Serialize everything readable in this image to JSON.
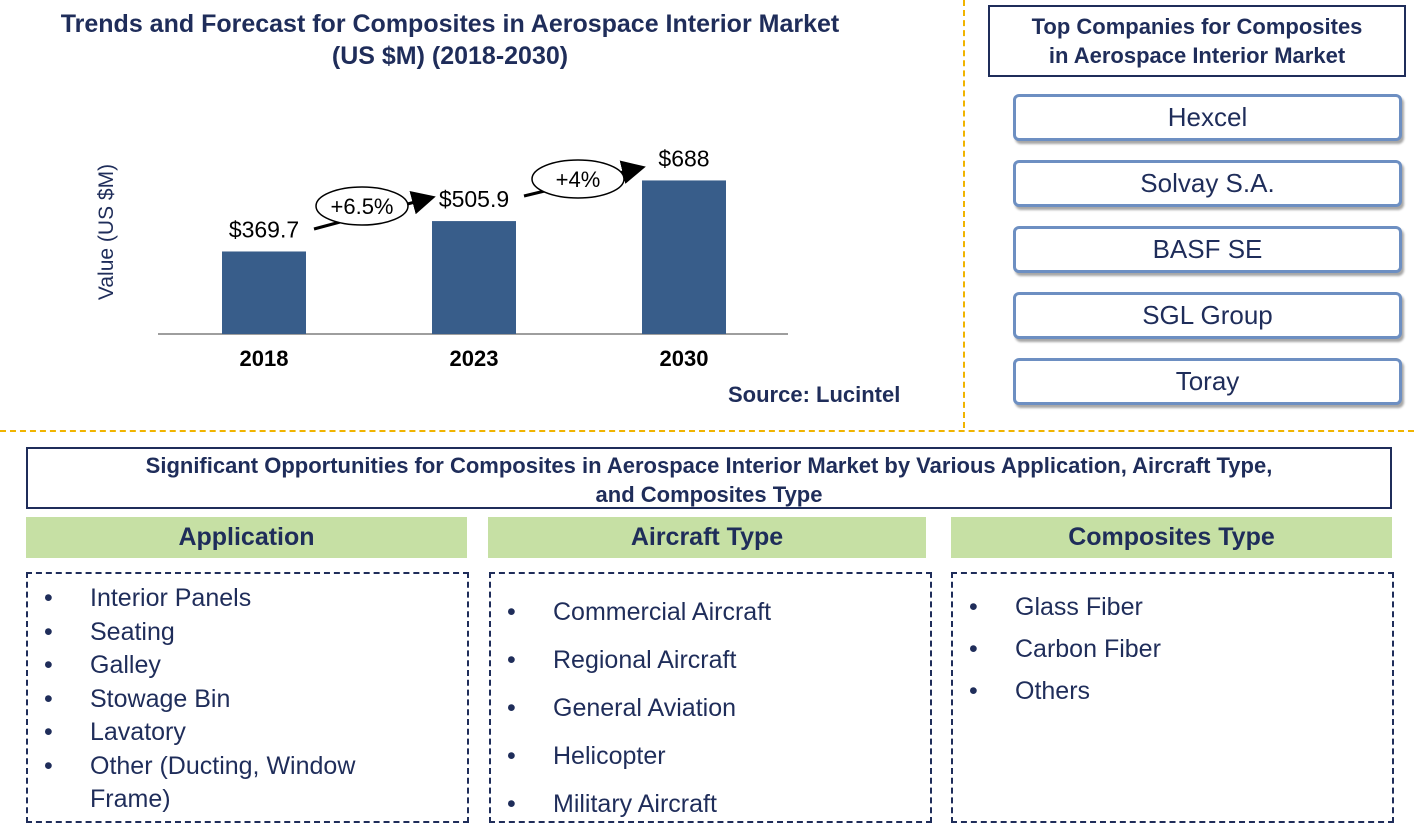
{
  "chart_data": {
    "type": "bar",
    "title": "Trends and Forecast for Composites in Aerospace Interior Market",
    "subtitle": "(US $M) (2018-2030)",
    "ylabel": "Value (US $M)",
    "categories": [
      "2018",
      "2023",
      "2030"
    ],
    "values": [
      369.7,
      505.9,
      688
    ],
    "value_labels": [
      "$369.7",
      "$505.9",
      "$688"
    ],
    "growth_labels": [
      "+6.5%",
      "+4%"
    ],
    "ylim": [
      0,
      1000
    ],
    "bar_color": "#385d8a",
    "grid": false
  },
  "source": "Source: Lucintel",
  "top_companies": {
    "title_line1": "Top Companies  for Composites",
    "title_line2": "in Aerospace Interior  Market",
    "items": [
      "Hexcel",
      "Solvay  S.A.",
      "BASF SE",
      "SGL Group",
      "Toray"
    ]
  },
  "opportunities": {
    "title_line1": "Significant Opportunities  for Composites  in Aerospace Interior Market by Various Application, Aircraft Type,",
    "title_line2": "and   Composites Type",
    "categories": [
      {
        "heading": "Application",
        "items": [
          "Interior Panels",
          "Seating",
          "Galley",
          "Stowage Bin",
          "Lavatory",
          "Other (Ducting, Window Frame)"
        ]
      },
      {
        "heading": "Aircraft Type",
        "items": [
          "Commercial Aircraft",
          "Regional Aircraft",
          "General Aviation",
          "Helicopter",
          "Military Aircraft"
        ]
      },
      {
        "heading": "Composites Type",
        "items": [
          "Glass Fiber",
          "Carbon Fiber",
          "Others"
        ]
      }
    ]
  },
  "colors": {
    "navy": "#1f2d5a",
    "green_header": "#c6e0a4",
    "separator": "#f0b400"
  }
}
